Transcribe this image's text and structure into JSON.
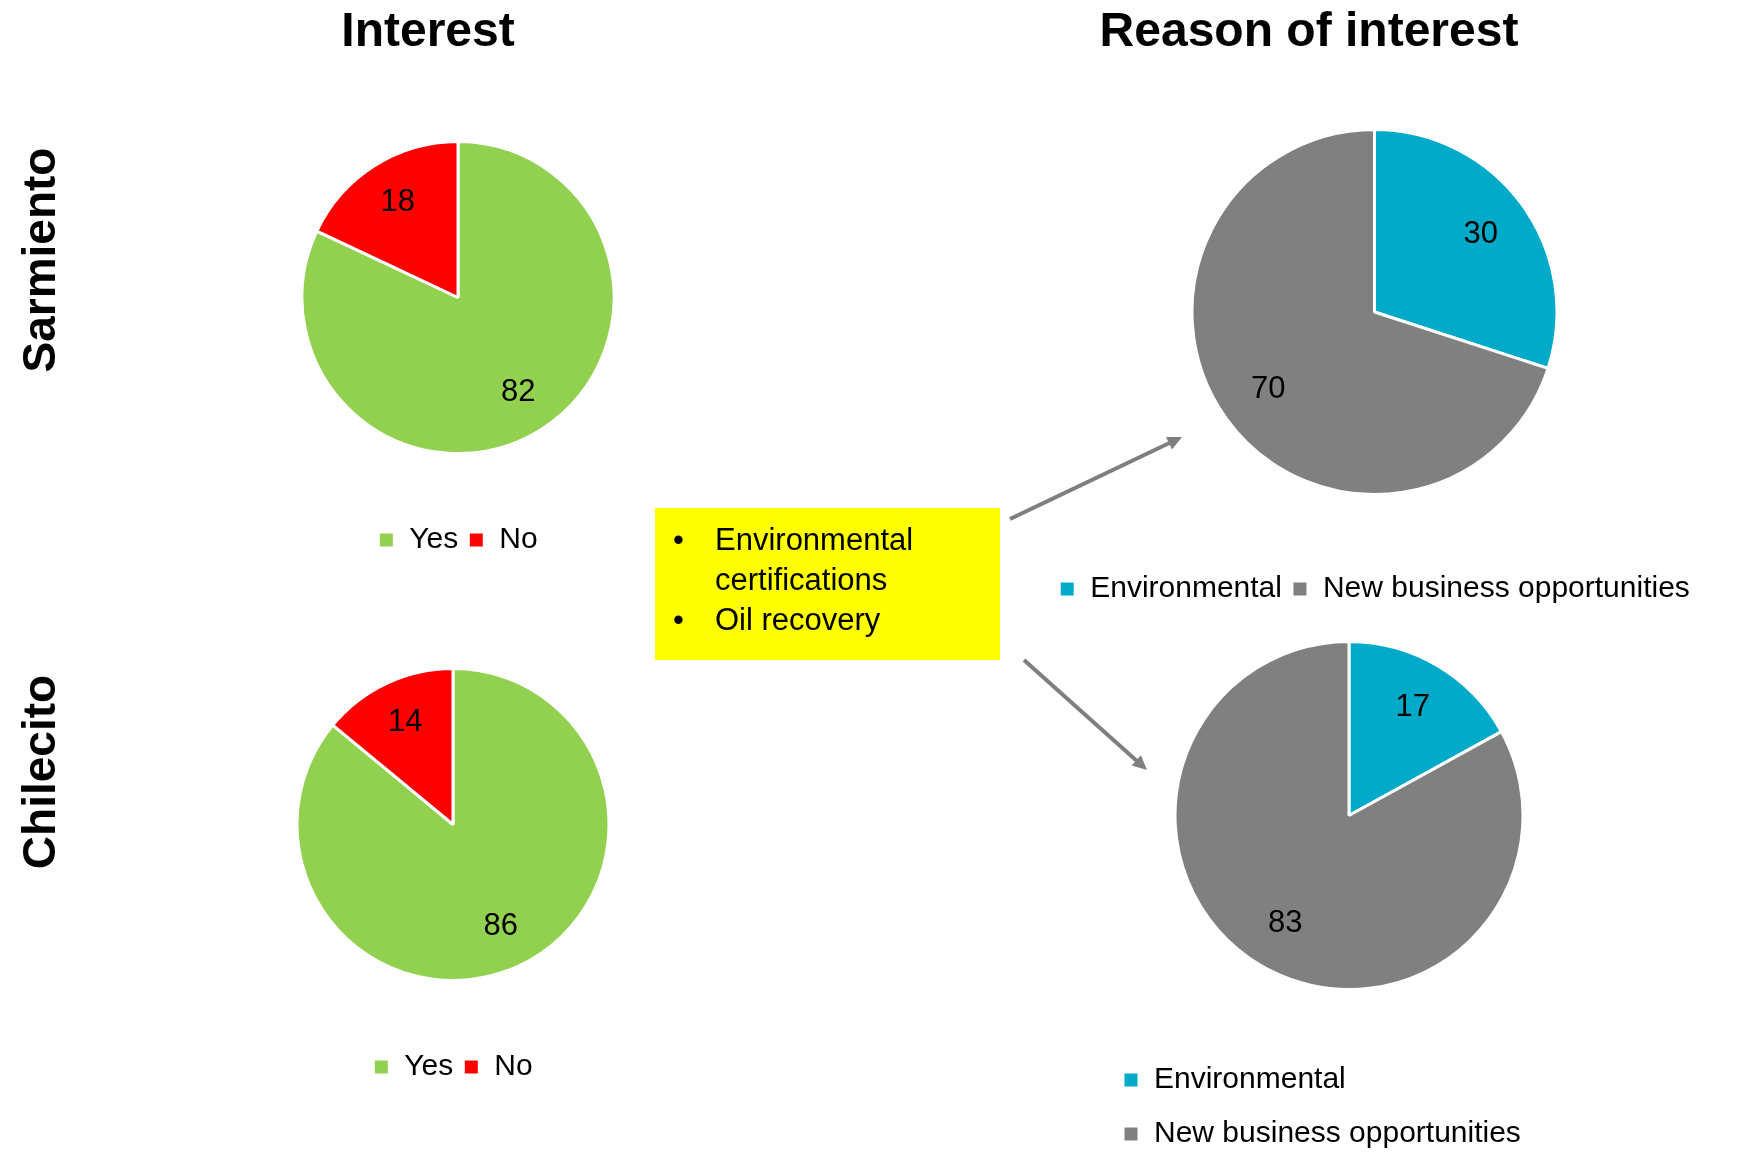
{
  "chart_data": [
    {
      "type": "pie",
      "title": "Interest",
      "ylabel": "Sarmiento",
      "categories": [
        "Yes",
        "No"
      ],
      "values": [
        82,
        18
      ],
      "colors": [
        "#92d050",
        "#ff0000"
      ],
      "data_labels": true,
      "legend": "bottom"
    },
    {
      "type": "pie",
      "title": "Reason of interest",
      "categories": [
        "Environmental",
        "New business opportunities"
      ],
      "values": [
        30,
        70
      ],
      "colors": [
        "#00aac8",
        "#808080"
      ],
      "data_labels": true,
      "legend": "bottom",
      "annotations": [
        "•\tEnvironmental certifications",
        "•\tOil recovery"
      ]
    },
    {
      "type": "pie",
      "ylabel": "Chilecito",
      "categories": [
        "Yes",
        "No"
      ],
      "values": [
        86,
        14
      ],
      "colors": [
        "#92d050",
        "#ff0000"
      ],
      "data_labels": true,
      "legend": "bottom"
    },
    {
      "type": "pie",
      "categories": [
        "Environmental",
        "New business opportunities"
      ],
      "values": [
        17,
        83
      ],
      "colors": [
        "#00aac8",
        "#808080"
      ],
      "data_labels": true,
      "legend": "bottom"
    }
  ]
}
